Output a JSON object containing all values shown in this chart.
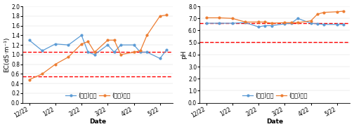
{
  "x_labels": [
    "12/22",
    "1/22",
    "2/22",
    "3/22",
    "4/22",
    "5/22"
  ],
  "x_ticks": [
    0,
    4,
    8,
    12,
    16,
    20
  ],
  "ec_x": [
    0,
    2,
    4,
    6,
    8,
    9,
    10,
    12,
    13,
    14,
    16,
    17,
    18,
    20,
    21
  ],
  "ec_blue": [
    1.3,
    1.08,
    1.22,
    1.2,
    1.4,
    1.05,
    1.0,
    1.2,
    1.05,
    1.2,
    1.2,
    1.05,
    1.05,
    0.92,
    1.1
  ],
  "ec_orange": [
    0.48,
    0.6,
    0.8,
    0.95,
    1.22,
    1.27,
    1.05,
    1.3,
    1.3,
    1.0,
    1.05,
    1.08,
    1.4,
    1.8,
    1.82
  ],
  "ec_hline1": 1.06,
  "ec_hline2": 0.55,
  "ec_ylim": [
    0.0,
    2.0
  ],
  "ec_yticks": [
    0.0,
    0.2,
    0.4,
    0.6,
    0.8,
    1.0,
    1.2,
    1.4,
    1.6,
    1.8,
    2.0
  ],
  "ec_ylabel": "EC(dS·m⁻¹)",
  "ph_x": [
    0,
    2,
    4,
    6,
    8,
    9,
    10,
    12,
    13,
    14,
    16,
    17,
    18,
    20,
    21
  ],
  "ph_blue": [
    6.6,
    6.6,
    6.6,
    6.65,
    6.3,
    6.4,
    6.4,
    6.55,
    6.6,
    7.0,
    6.6,
    6.55,
    6.5,
    6.5,
    6.5
  ],
  "ph_orange": [
    7.05,
    7.05,
    7.0,
    6.7,
    6.7,
    6.7,
    6.6,
    6.65,
    6.65,
    6.65,
    6.8,
    7.35,
    7.5,
    7.55,
    7.6
  ],
  "ph_hline1": 6.6,
  "ph_hline2": 5.05,
  "ph_ylim": [
    0.0,
    8.0
  ],
  "ph_yticks": [
    0.0,
    1.0,
    2.0,
    3.0,
    4.0,
    5.0,
    6.0,
    7.0,
    8.0
  ],
  "ph_ylabel": "pH",
  "xlabel": "Date",
  "color_blue": "#5B9BD5",
  "color_orange": "#ED7D31",
  "color_red_dashed": "#FF0000",
  "legend_blue": "(급액)충남",
  "legend_orange": "(배액)충남",
  "axis_fontsize": 6.5,
  "tick_fontsize": 5.5,
  "legend_fontsize": 6.0
}
